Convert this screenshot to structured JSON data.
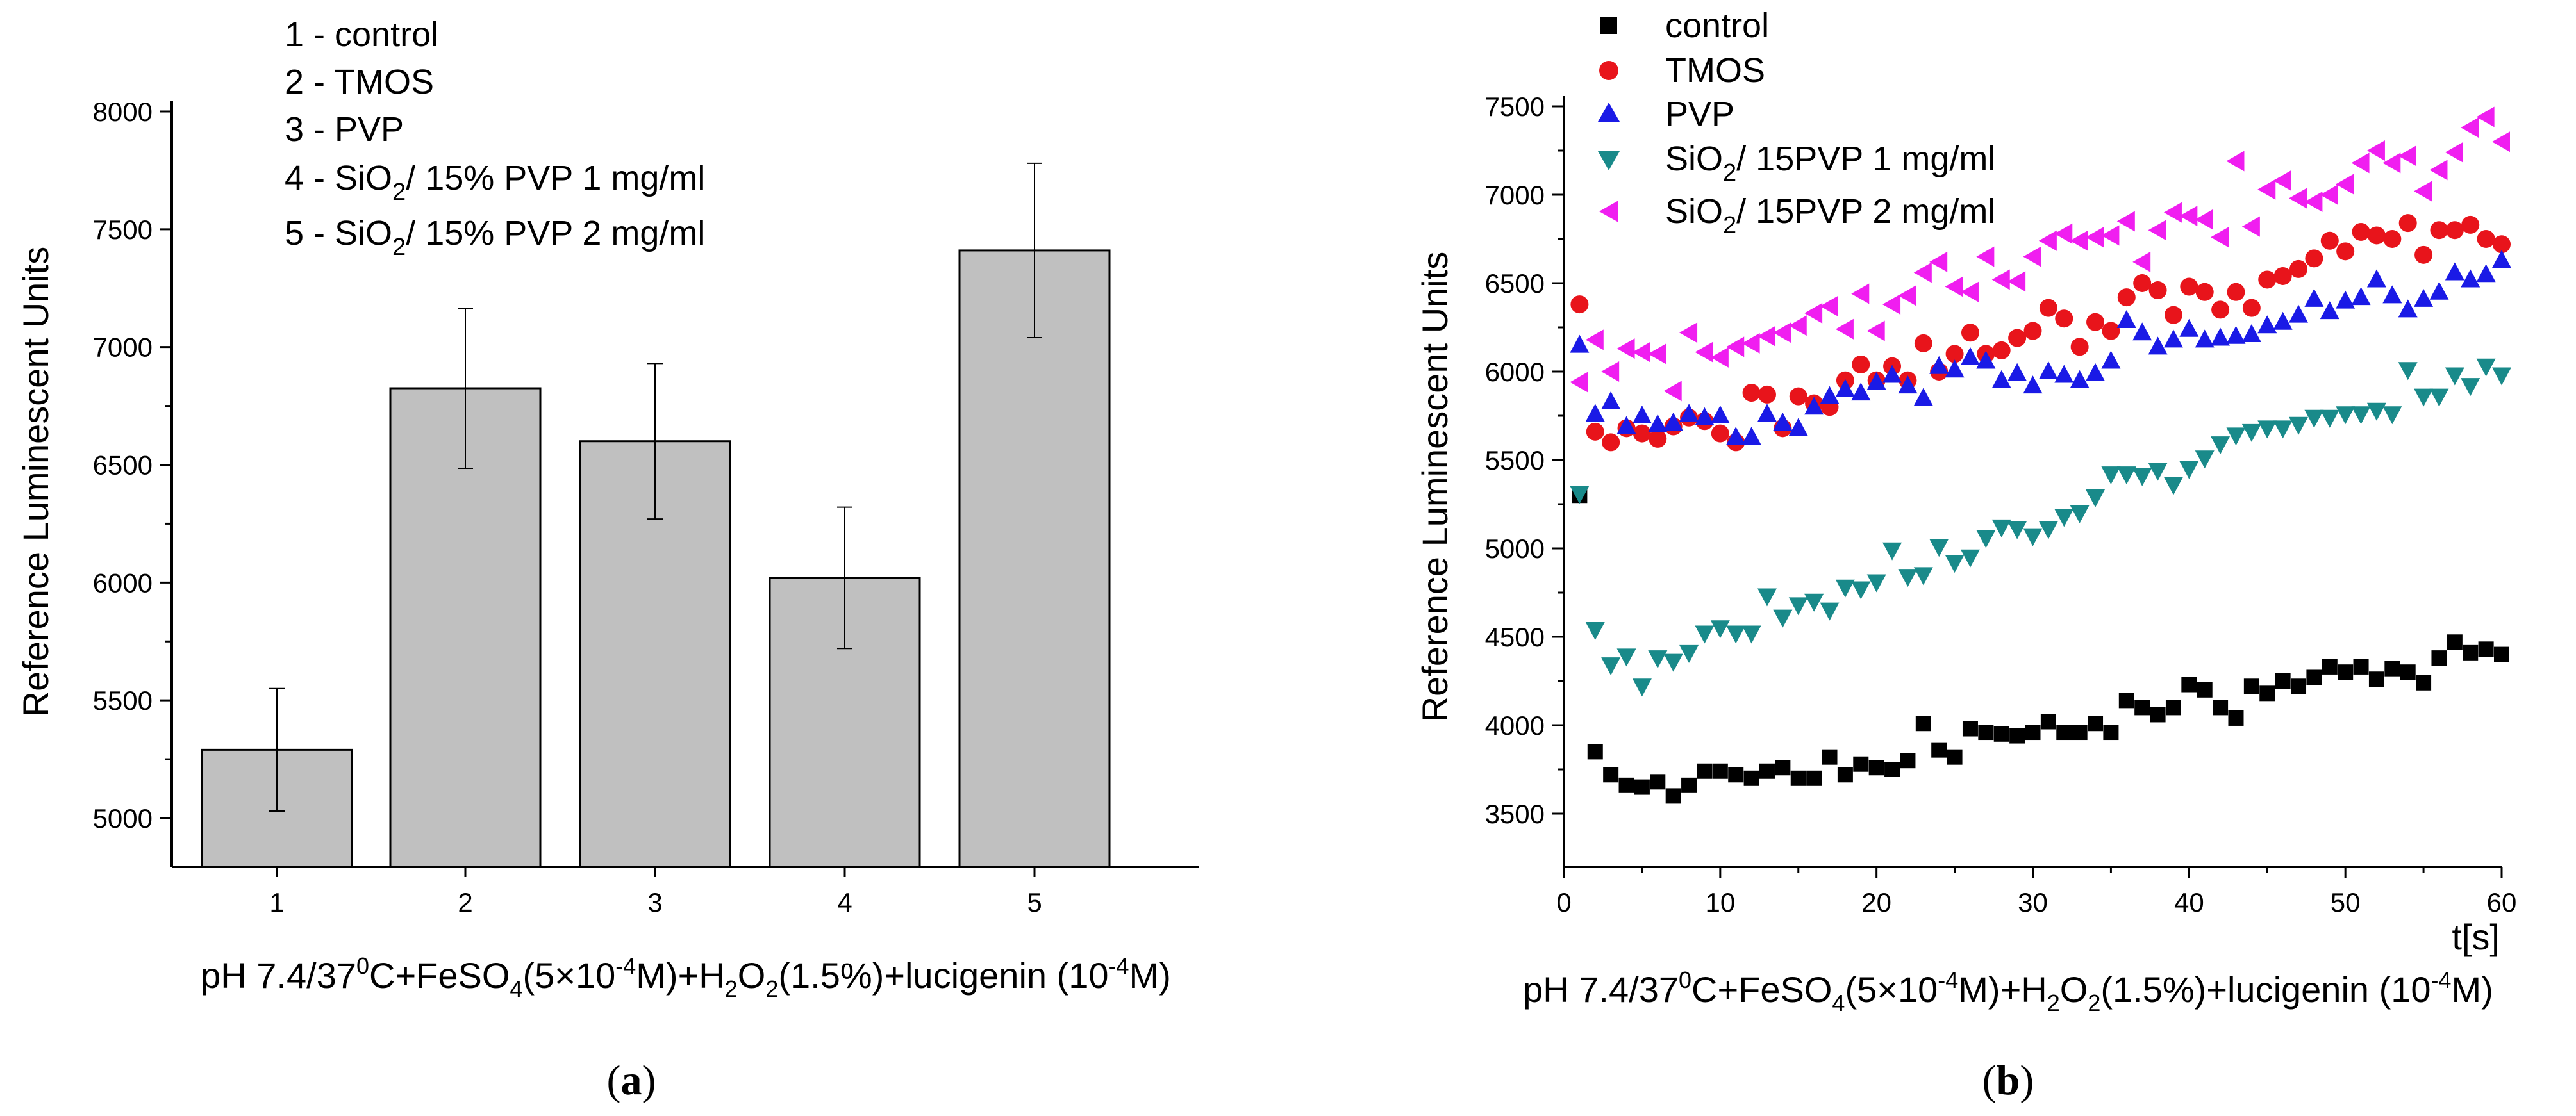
{
  "chart_data": [
    {
      "type": "bar",
      "panel_label": "a",
      "ylabel": "Reference Luminescent Units",
      "xlabel": {
        "pre": "pH 7.4/37",
        "sup1": "0",
        "mid1": "C+FeSO",
        "sub1": "4",
        "mid2": "(5×10",
        "sup2": "-4",
        "mid3": "M)+H",
        "sub2": "2",
        "mid4": "O",
        "sub3": "2",
        "mid5": "(1.5%)+lucigenin (10",
        "sup3": "-4",
        "post": "M)"
      },
      "ylim": [
        4800,
        8000
      ],
      "yticks": [
        "5000",
        "5500",
        "6000",
        "6500",
        "7000",
        "7500",
        "8000"
      ],
      "categories": [
        "1",
        "2",
        "3",
        "4",
        "5"
      ],
      "values": [
        5290,
        6825,
        6600,
        6020,
        7410
      ],
      "errors": [
        260,
        340,
        330,
        300,
        370
      ],
      "bar_color": "#c0c0c0",
      "legend": [
        {
          "pre": "1 - control",
          "sub": "",
          "post": ""
        },
        {
          "pre": "2 - TMOS",
          "sub": "",
          "post": ""
        },
        {
          "pre": "3 - PVP",
          "sub": "",
          "post": ""
        },
        {
          "pre": "4 - SiO",
          "sub": "2",
          "post": "/ 15% PVP 1 mg/ml"
        },
        {
          "pre": "5 - SiO",
          "sub": "2",
          "post": "/ 15% PVP 2 mg/ml"
        }
      ]
    },
    {
      "type": "scatter",
      "panel_label": "b",
      "ylabel": "Reference Luminescent Units",
      "xlabel_unit": "t[s]",
      "xlabel": {
        "pre": "pH 7.4/37",
        "sup1": "0",
        "mid1": "C+FeSO",
        "sub1": "4",
        "mid2": "(5×10",
        "sup2": "-4",
        "mid3": "M)+H",
        "sub2": "2",
        "mid4": "O",
        "sub3": "2",
        "mid5": "(1.5%)+lucigenin (10",
        "sup3": "-4",
        "post": "M)"
      },
      "xlim": [
        0,
        60
      ],
      "ylim": [
        3250,
        7600
      ],
      "xticks": [
        "0",
        "10",
        "20",
        "30",
        "40",
        "50",
        "60"
      ],
      "yticks": [
        "3500",
        "4000",
        "4500",
        "5000",
        "5500",
        "6000",
        "6500",
        "7000",
        "7500"
      ],
      "series": [
        {
          "name": "control",
          "name_pre": "control",
          "name_sub": "",
          "name_post": "",
          "marker": "square",
          "color": "#000000",
          "x": [
            1,
            2,
            3,
            4,
            5,
            6,
            7,
            8,
            9,
            10,
            11,
            12,
            13,
            14,
            15,
            16,
            17,
            18,
            19,
            20,
            21,
            22,
            23,
            24,
            25,
            26,
            27,
            28,
            29,
            30,
            31,
            32,
            33,
            34,
            35,
            36,
            37,
            38,
            39,
            40,
            41,
            42,
            43,
            44,
            45,
            46,
            47,
            48,
            49,
            50,
            51,
            52,
            53,
            54,
            55,
            56,
            57,
            58,
            59,
            60
          ],
          "values": [
            5300,
            3850,
            3720,
            3660,
            3650,
            3680,
            3600,
            3660,
            3740,
            3740,
            3720,
            3700,
            3740,
            3760,
            3700,
            3700,
            3820,
            3720,
            3780,
            3760,
            3750,
            3800,
            4010,
            3860,
            3820,
            3980,
            3960,
            3950,
            3940,
            3960,
            4020,
            3960,
            3960,
            4010,
            3960,
            4140,
            4100,
            4060,
            4100,
            4230,
            4200,
            4100,
            4040,
            4220,
            4180,
            4250,
            4220,
            4270,
            4330,
            4300,
            4330,
            4260,
            4320,
            4300,
            4240,
            4380,
            4470,
            4410,
            4430,
            4400
          ]
        },
        {
          "name": "TMOS",
          "name_pre": "TMOS",
          "name_sub": "",
          "name_post": "",
          "marker": "circle",
          "color": "#e8141b",
          "x": [
            1,
            2,
            3,
            4,
            5,
            6,
            7,
            8,
            9,
            10,
            11,
            12,
            13,
            14,
            15,
            16,
            17,
            18,
            19,
            20,
            21,
            22,
            23,
            24,
            25,
            26,
            27,
            28,
            29,
            30,
            31,
            32,
            33,
            34,
            35,
            36,
            37,
            38,
            39,
            40,
            41,
            42,
            43,
            44,
            45,
            46,
            47,
            48,
            49,
            50,
            51,
            52,
            53,
            54,
            55,
            56,
            57,
            58,
            59,
            60
          ],
          "values": [
            6380,
            5660,
            5600,
            5680,
            5650,
            5620,
            5690,
            5740,
            5720,
            5650,
            5600,
            5880,
            5870,
            5680,
            5860,
            5820,
            5800,
            5950,
            6040,
            5950,
            6030,
            5950,
            6160,
            6000,
            6100,
            6220,
            6100,
            6120,
            6190,
            6230,
            6360,
            6300,
            6140,
            6280,
            6230,
            6420,
            6500,
            6460,
            6320,
            6480,
            6450,
            6350,
            6450,
            6360,
            6520,
            6540,
            6580,
            6640,
            6740,
            6680,
            6790,
            6770,
            6750,
            6840,
            6660,
            6800,
            6800,
            6830,
            6750,
            6720
          ]
        },
        {
          "name": "PVP",
          "name_pre": "PVP",
          "name_sub": "",
          "name_post": "",
          "marker": "triangle-up",
          "color": "#1a1ae6",
          "x": [
            1,
            2,
            3,
            4,
            5,
            6,
            7,
            8,
            9,
            10,
            11,
            12,
            13,
            14,
            15,
            16,
            17,
            18,
            19,
            20,
            21,
            22,
            23,
            24,
            25,
            26,
            27,
            28,
            29,
            30,
            31,
            32,
            33,
            34,
            35,
            36,
            37,
            38,
            39,
            40,
            41,
            42,
            43,
            44,
            45,
            46,
            47,
            48,
            49,
            50,
            51,
            52,
            53,
            54,
            55,
            56,
            57,
            58,
            59,
            60
          ],
          "values": [
            6150,
            5760,
            5830,
            5690,
            5750,
            5700,
            5710,
            5760,
            5740,
            5750,
            5630,
            5630,
            5760,
            5710,
            5680,
            5800,
            5860,
            5900,
            5880,
            5940,
            5980,
            5920,
            5850,
            6030,
            6010,
            6080,
            6060,
            5950,
            5990,
            5920,
            6000,
            5980,
            5950,
            5990,
            6060,
            6290,
            6220,
            6140,
            6180,
            6240,
            6180,
            6190,
            6200,
            6210,
            6260,
            6280,
            6320,
            6410,
            6340,
            6400,
            6420,
            6520,
            6430,
            6350,
            6410,
            6450,
            6560,
            6520,
            6550,
            6630
          ]
        },
        {
          "name": "SiO2/ 15PVP 1 mg/ml",
          "name_pre": "SiO",
          "name_sub": "2",
          "name_post": "/ 15PVP 1 mg/ml",
          "marker": "triangle-down",
          "color": "#198a8a",
          "x": [
            1,
            2,
            3,
            4,
            5,
            6,
            7,
            8,
            9,
            10,
            11,
            12,
            13,
            14,
            15,
            16,
            17,
            18,
            19,
            20,
            21,
            22,
            23,
            24,
            25,
            26,
            27,
            28,
            29,
            30,
            31,
            32,
            33,
            34,
            35,
            36,
            37,
            38,
            39,
            40,
            41,
            42,
            43,
            44,
            45,
            46,
            47,
            48,
            49,
            50,
            51,
            52,
            53,
            54,
            55,
            56,
            57,
            58,
            59,
            60
          ],
          "values": [
            5310,
            4540,
            4340,
            4390,
            4220,
            4380,
            4360,
            4410,
            4520,
            4550,
            4520,
            4520,
            4730,
            4610,
            4680,
            4700,
            4650,
            4780,
            4770,
            4810,
            4990,
            4840,
            4850,
            5010,
            4920,
            4950,
            5060,
            5120,
            5110,
            5070,
            5110,
            5180,
            5200,
            5290,
            5420,
            5420,
            5410,
            5440,
            5360,
            5450,
            5510,
            5590,
            5640,
            5660,
            5680,
            5680,
            5700,
            5740,
            5740,
            5760,
            5760,
            5780,
            5760,
            6010,
            5860,
            5860,
            5980,
            5920,
            6030,
            5980
          ]
        },
        {
          "name": "SiO2/ 15PVP 2 mg/ml",
          "name_pre": "SiO",
          "name_sub": "2",
          "name_post": "/ 15PVP 2 mg/ml",
          "marker": "triangle-left",
          "color": "#f01ef0",
          "x": [
            1,
            2,
            3,
            4,
            5,
            6,
            7,
            8,
            9,
            10,
            11,
            12,
            13,
            14,
            15,
            16,
            17,
            18,
            19,
            20,
            21,
            22,
            23,
            24,
            25,
            26,
            27,
            28,
            29,
            30,
            31,
            32,
            33,
            34,
            35,
            36,
            37,
            38,
            39,
            40,
            41,
            42,
            43,
            44,
            45,
            46,
            47,
            48,
            49,
            50,
            51,
            52,
            53,
            54,
            55,
            56,
            57,
            58,
            59,
            60
          ],
          "values": [
            5940,
            6180,
            6000,
            6130,
            6110,
            6100,
            5890,
            6220,
            6110,
            6080,
            6140,
            6160,
            6200,
            6220,
            6260,
            6330,
            6370,
            6240,
            6440,
            6230,
            6380,
            6430,
            6560,
            6620,
            6480,
            6450,
            6650,
            6520,
            6510,
            6650,
            6740,
            6780,
            6740,
            6760,
            6770,
            6850,
            6620,
            6800,
            6900,
            6880,
            6860,
            6760,
            7190,
            6820,
            7030,
            7080,
            6980,
            6960,
            7000,
            7060,
            7180,
            7250,
            7180,
            7220,
            7020,
            7140,
            7240,
            7380,
            7440,
            7300
          ]
        }
      ]
    }
  ]
}
